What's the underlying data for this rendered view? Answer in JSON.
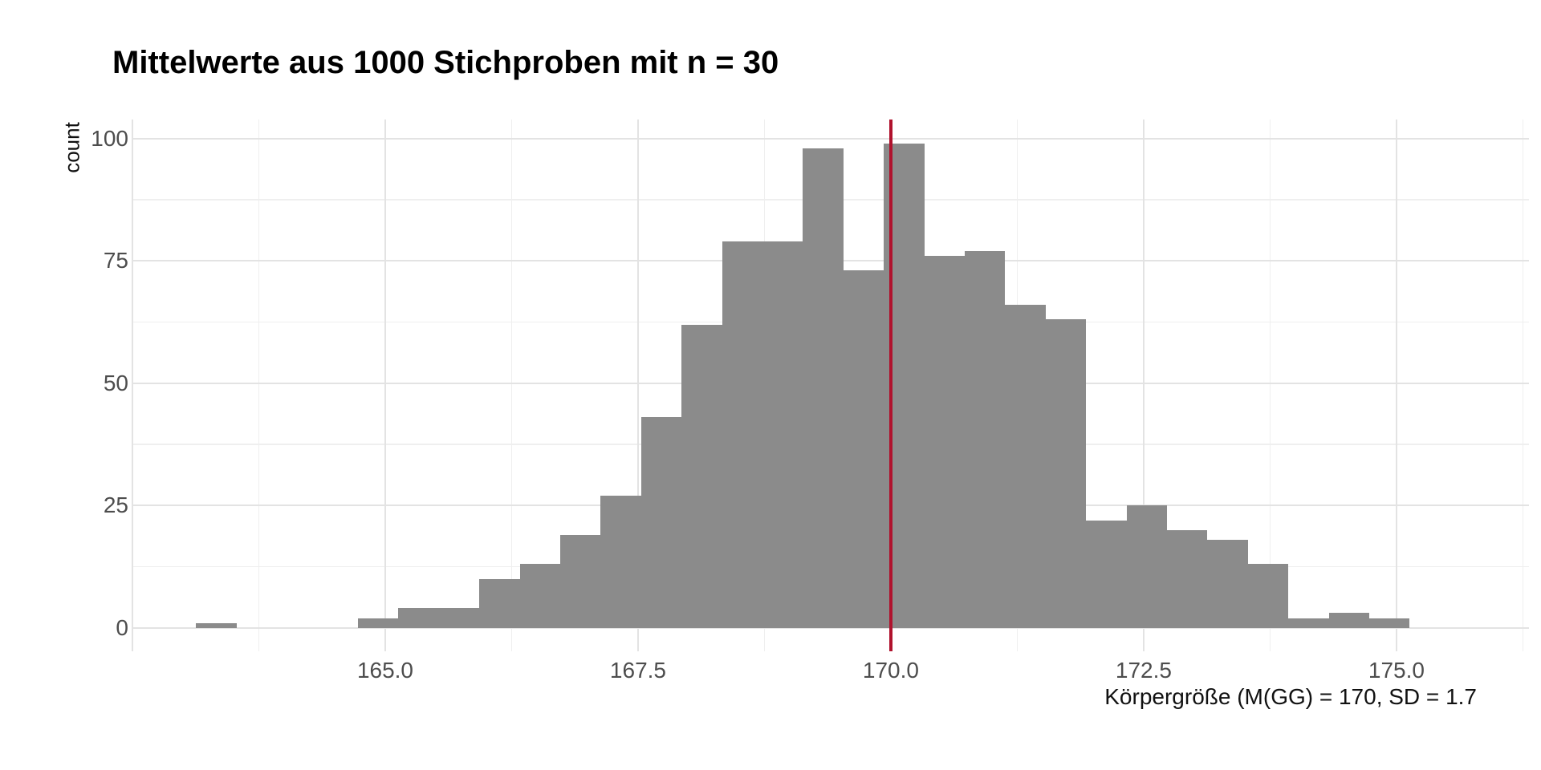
{
  "page": {
    "background": "#ffffff"
  },
  "chart_data": {
    "type": "bar",
    "subtype": "histogram",
    "title": "Mittelwerte aus 1000 Stichproben mit n = 30",
    "xlabel": "Körpergröße (M(GG) = 170, SD = 1.7",
    "ylabel": "count",
    "legend_position": "none",
    "grid": "major and minor, light gray on white",
    "total_samples": 1000,
    "bin_width": 0.4,
    "x_tick_labels": [
      "165.0",
      "167.5",
      "170.0",
      "172.5",
      "175.0"
    ],
    "x_tick_values": [
      165.0,
      167.5,
      170.0,
      172.5,
      175.0
    ],
    "x_grid_major": [
      162.5,
      165.0,
      167.5,
      170.0,
      172.5,
      175.0
    ],
    "x_grid_minor": [
      163.75,
      166.25,
      168.75,
      171.25,
      173.75,
      176.25
    ],
    "y_tick_labels": [
      "0",
      "25",
      "50",
      "75",
      "100"
    ],
    "y_tick_values": [
      0,
      25,
      50,
      75,
      100
    ],
    "y_grid_minor": [
      12.5,
      37.5,
      62.5,
      87.5
    ],
    "xlim": [
      162.5,
      176.31
    ],
    "ylim": [
      -4.8,
      103.9
    ],
    "bins": [
      {
        "x0": 163.13,
        "x1": 163.53,
        "count": 1
      },
      {
        "x0": 163.53,
        "x1": 163.93,
        "count": 0
      },
      {
        "x0": 163.93,
        "x1": 164.33,
        "count": 0
      },
      {
        "x0": 164.33,
        "x1": 164.73,
        "count": 0
      },
      {
        "x0": 164.73,
        "x1": 165.13,
        "count": 2
      },
      {
        "x0": 165.13,
        "x1": 165.53,
        "count": 4
      },
      {
        "x0": 165.53,
        "x1": 165.93,
        "count": 4
      },
      {
        "x0": 165.93,
        "x1": 166.33,
        "count": 10
      },
      {
        "x0": 166.33,
        "x1": 166.73,
        "count": 13
      },
      {
        "x0": 166.73,
        "x1": 167.13,
        "count": 19
      },
      {
        "x0": 167.13,
        "x1": 167.53,
        "count": 27
      },
      {
        "x0": 167.53,
        "x1": 167.93,
        "count": 43
      },
      {
        "x0": 167.93,
        "x1": 168.33,
        "count": 62
      },
      {
        "x0": 168.33,
        "x1": 168.73,
        "count": 79
      },
      {
        "x0": 168.73,
        "x1": 169.13,
        "count": 79
      },
      {
        "x0": 169.13,
        "x1": 169.53,
        "count": 98
      },
      {
        "x0": 169.53,
        "x1": 169.93,
        "count": 73
      },
      {
        "x0": 169.93,
        "x1": 170.33,
        "count": 99
      },
      {
        "x0": 170.33,
        "x1": 170.73,
        "count": 76
      },
      {
        "x0": 170.73,
        "x1": 171.13,
        "count": 77
      },
      {
        "x0": 171.13,
        "x1": 171.53,
        "count": 66
      },
      {
        "x0": 171.53,
        "x1": 171.93,
        "count": 63
      },
      {
        "x0": 171.93,
        "x1": 172.33,
        "count": 22
      },
      {
        "x0": 172.33,
        "x1": 172.73,
        "count": 25
      },
      {
        "x0": 172.73,
        "x1": 173.13,
        "count": 20
      },
      {
        "x0": 173.13,
        "x1": 173.53,
        "count": 18
      },
      {
        "x0": 173.53,
        "x1": 173.93,
        "count": 13
      },
      {
        "x0": 173.93,
        "x1": 174.33,
        "count": 2
      },
      {
        "x0": 174.33,
        "x1": 174.73,
        "count": 3
      },
      {
        "x0": 174.73,
        "x1": 175.13,
        "count": 2
      }
    ],
    "vline": {
      "x": 170.0,
      "color": "#b0122d",
      "meaning": "population mean"
    },
    "bar_color": "#8b8b8b",
    "grid_major_color": "#e3e3e3",
    "grid_minor_color": "#efefef",
    "tick_label_color": "#4d4d4d",
    "text_color": "#000000"
  }
}
